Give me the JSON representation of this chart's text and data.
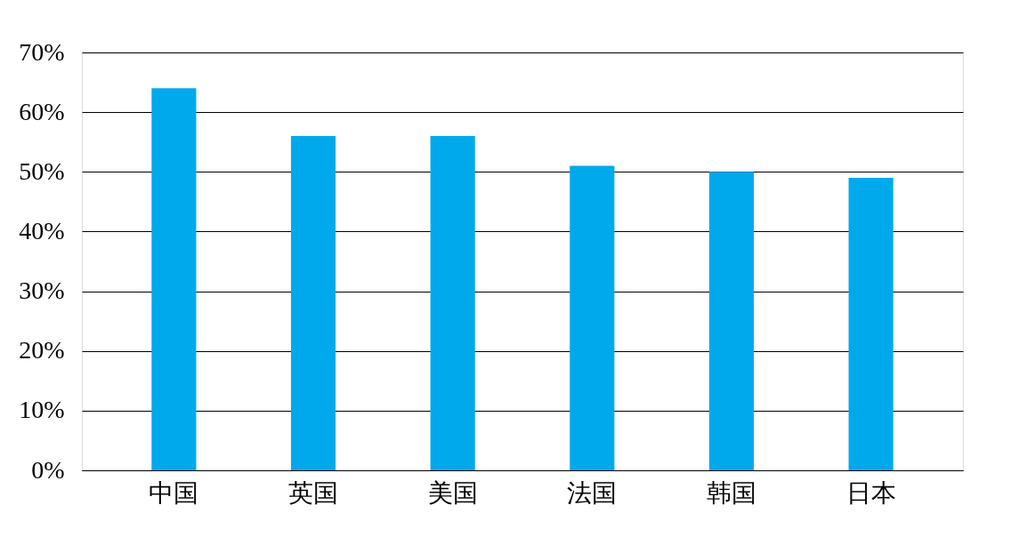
{
  "chart_data": {
    "type": "bar",
    "categories": [
      "中国",
      "英国",
      "美国",
      "法国",
      "韩国",
      "日本"
    ],
    "values": [
      64,
      56,
      56,
      51,
      50,
      49
    ],
    "color": "#00a9ec",
    "ylim": [
      0,
      70
    ],
    "yticks": [
      {
        "value": 0,
        "label": "0%"
      },
      {
        "value": 10,
        "label": "10%"
      },
      {
        "value": 20,
        "label": "20%"
      },
      {
        "value": 30,
        "label": "30%"
      },
      {
        "value": 40,
        "label": "40%"
      },
      {
        "value": 50,
        "label": "50%"
      },
      {
        "value": 60,
        "label": "60%"
      },
      {
        "value": 70,
        "label": "70%"
      }
    ],
    "grid": "y"
  }
}
